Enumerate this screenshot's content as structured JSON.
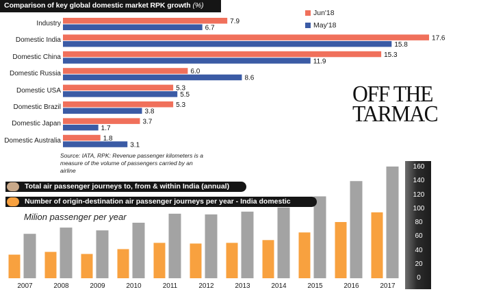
{
  "top_chart_title": "Comparison of key global domestic market RPK growth",
  "top_chart_title_unit": "(%)",
  "headline_line1": "OFF THE",
  "headline_line2": "TARMAC",
  "source_note": "Source: IATA, RPK: Revenue passenger kilometers is a measure of the volume of passengers carried by an airline",
  "bottom_subtitle": "Milion passenger per year",
  "colors": {
    "jun18": "#f0705b",
    "may18": "#3b5ba5",
    "annual_total": "#a3a3a3",
    "od_journeys": "#f8a13f",
    "annual_dot": "#c9a98a",
    "od_dot": "#f8a13f"
  },
  "chart_data": [
    {
      "type": "bar",
      "orientation": "horizontal",
      "title": "Comparison of key global domestic market RPK growth (%)",
      "categories": [
        "Industry",
        "Domestic India",
        "Domestic China",
        "Domestic Russia",
        "Domestic USA",
        "Domestic Brazil",
        "Domestic Japan",
        "Domestic Australia"
      ],
      "series": [
        {
          "name": "Jun'18",
          "values": [
            7.9,
            17.6,
            15.3,
            6.0,
            5.3,
            5.3,
            3.7,
            1.8
          ],
          "labels": [
            "7.9",
            "17.6",
            "15.3",
            "6.0",
            "5.3",
            "5.3",
            "3.7",
            "1.8"
          ]
        },
        {
          "name": "May'18",
          "values": [
            6.7,
            15.8,
            11.9,
            8.6,
            5.5,
            3.8,
            1.7,
            3.1
          ],
          "labels": [
            "6.7",
            "15.8",
            "11.9",
            "8.6",
            "5.5",
            "3.8",
            "1.7",
            "3.1"
          ]
        }
      ],
      "xlim": [
        0,
        17.6
      ],
      "legend": "top-right",
      "grid": false
    },
    {
      "type": "bar",
      "title": "",
      "ylabel": "Milion passenger per year",
      "categories": [
        "2007",
        "2008",
        "2009",
        "2010",
        "2011",
        "2012",
        "2013",
        "2014",
        "2015",
        "2016",
        "2017"
      ],
      "series": [
        {
          "name": "Number of origin-destination air passenger journeys per year - India domestic",
          "values": [
            34,
            38,
            35,
            42,
            51,
            50,
            51,
            55,
            66,
            81,
            95
          ]
        },
        {
          "name": "Total air passenger journeys to, from & within India (annual)",
          "values": [
            64,
            73,
            69,
            80,
            93,
            92,
            96,
            102,
            118,
            140,
            161
          ]
        }
      ],
      "ylim": [
        0,
        160
      ],
      "yticks": [
        "0",
        "20",
        "40",
        "60",
        "80",
        "100",
        "120",
        "140",
        "160"
      ],
      "legend": "top-left",
      "grid": false
    }
  ]
}
